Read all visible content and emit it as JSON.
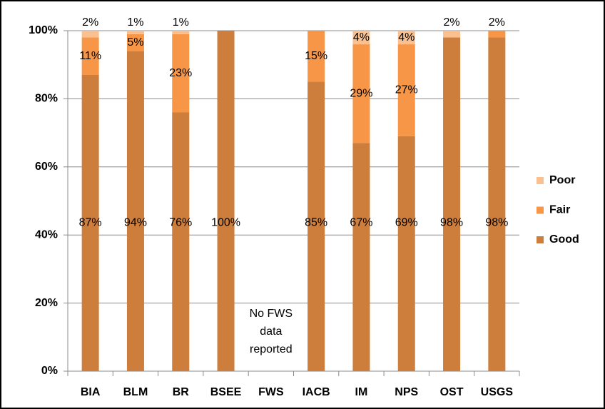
{
  "chart_data": {
    "type": "stacked_bar",
    "categories": [
      "BIA",
      "BLM",
      "BR",
      "BSEE",
      "FWS",
      "IACB",
      "IM",
      "NPS",
      "OST",
      "USGS"
    ],
    "series": [
      {
        "name": "Good",
        "color": "#CD7D3C",
        "values": [
          87,
          94,
          76,
          100,
          null,
          85,
          67,
          69,
          98,
          98
        ],
        "value_labels": [
          "87%",
          "94%",
          "76%",
          "100%",
          null,
          "85%",
          "67%",
          "69%",
          "98%",
          "98%"
        ]
      },
      {
        "name": "Fair",
        "color": "#F79646",
        "values": [
          11,
          5,
          23,
          null,
          null,
          15,
          29,
          27,
          null,
          2
        ],
        "value_labels": [
          "11%",
          "5%",
          "23%",
          null,
          null,
          "15%",
          "29%",
          "27%",
          null,
          "2%"
        ]
      },
      {
        "name": "Poor",
        "color": "#FAC090",
        "values": [
          2,
          1,
          1,
          null,
          null,
          null,
          4,
          4,
          2,
          null
        ],
        "value_labels": [
          "2%",
          "1%",
          "1%",
          null,
          null,
          null,
          "4%",
          "4%",
          "2%",
          null
        ]
      }
    ],
    "ylim": [
      0,
      100
    ],
    "yticks": [
      {
        "value": 0,
        "label": "0%"
      },
      {
        "value": 20,
        "label": "20%"
      },
      {
        "value": 40,
        "label": "40%"
      },
      {
        "value": 60,
        "label": "60%"
      },
      {
        "value": 80,
        "label": "80%"
      },
      {
        "value": 100,
        "label": "100%"
      }
    ],
    "grid": true,
    "legend": "right",
    "annotation": [
      "No FWS",
      "data",
      "reported"
    ]
  }
}
